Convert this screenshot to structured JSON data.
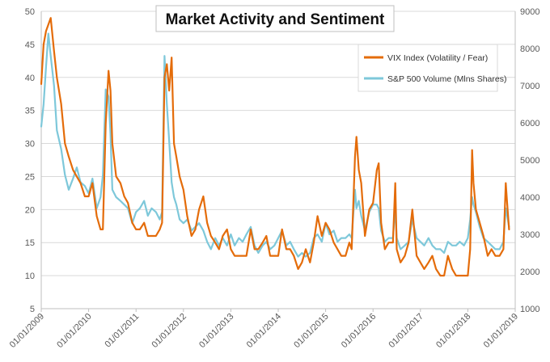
{
  "chart_data": {
    "type": "line",
    "title": "Market Activity and Sentiment",
    "grid": true,
    "legend": "top-right",
    "y_left": {
      "min": 5,
      "max": 50,
      "ticks": [
        "5",
        "10",
        "15",
        "20",
        "25",
        "30",
        "35",
        "40",
        "45",
        "50"
      ]
    },
    "y_right": {
      "min": 1000,
      "max": 9000,
      "ticks": [
        "1000",
        "2000",
        "3000",
        "4000",
        "5000",
        "6000",
        "7000",
        "8000",
        "9000"
      ]
    },
    "x_ticks": [
      "01/01/2009",
      "01/01/2010",
      "01/01/2011",
      "01/01/2012",
      "01/01/2013",
      "01/01/2014",
      "01/01/2015",
      "01/01/2016",
      "01/01/2017",
      "01/01/2018",
      "01/01/2019"
    ],
    "x_range": [
      2009.0,
      2019.0
    ],
    "series": [
      {
        "name": "VIX Index (Volatility / Fear)",
        "axis": "left",
        "color": "#E46C0A",
        "points": [
          [
            2009.0,
            39
          ],
          [
            2009.05,
            45
          ],
          [
            2009.1,
            47
          ],
          [
            2009.15,
            48
          ],
          [
            2009.2,
            49
          ],
          [
            2009.27,
            44
          ],
          [
            2009.33,
            40
          ],
          [
            2009.42,
            36
          ],
          [
            2009.5,
            30
          ],
          [
            2009.58,
            28
          ],
          [
            2009.67,
            26
          ],
          [
            2009.75,
            25
          ],
          [
            2009.83,
            24
          ],
          [
            2009.92,
            22
          ],
          [
            2010.0,
            22
          ],
          [
            2010.08,
            24
          ],
          [
            2010.17,
            19
          ],
          [
            2010.25,
            17
          ],
          [
            2010.3,
            17
          ],
          [
            2010.36,
            33
          ],
          [
            2010.42,
            41
          ],
          [
            2010.46,
            38
          ],
          [
            2010.5,
            30
          ],
          [
            2010.58,
            25
          ],
          [
            2010.67,
            24
          ],
          [
            2010.75,
            22
          ],
          [
            2010.83,
            21
          ],
          [
            2010.92,
            18
          ],
          [
            2011.0,
            17
          ],
          [
            2011.08,
            17
          ],
          [
            2011.17,
            18
          ],
          [
            2011.25,
            16
          ],
          [
            2011.33,
            16
          ],
          [
            2011.42,
            16
          ],
          [
            2011.5,
            17
          ],
          [
            2011.55,
            18
          ],
          [
            2011.6,
            40
          ],
          [
            2011.65,
            42
          ],
          [
            2011.7,
            38
          ],
          [
            2011.75,
            43
          ],
          [
            2011.8,
            30
          ],
          [
            2011.85,
            28
          ],
          [
            2011.92,
            25
          ],
          [
            2012.0,
            23
          ],
          [
            2012.08,
            19
          ],
          [
            2012.17,
            16
          ],
          [
            2012.25,
            17
          ],
          [
            2012.33,
            20
          ],
          [
            2012.42,
            22
          ],
          [
            2012.5,
            18
          ],
          [
            2012.58,
            16
          ],
          [
            2012.67,
            15
          ],
          [
            2012.75,
            14
          ],
          [
            2012.83,
            16
          ],
          [
            2012.92,
            17
          ],
          [
            2013.0,
            14
          ],
          [
            2013.08,
            13
          ],
          [
            2013.17,
            13
          ],
          [
            2013.25,
            13
          ],
          [
            2013.33,
            13
          ],
          [
            2013.42,
            17
          ],
          [
            2013.5,
            14
          ],
          [
            2013.58,
            14
          ],
          [
            2013.67,
            15
          ],
          [
            2013.75,
            16
          ],
          [
            2013.83,
            13
          ],
          [
            2013.92,
            13
          ],
          [
            2014.0,
            13
          ],
          [
            2014.08,
            17
          ],
          [
            2014.17,
            14
          ],
          [
            2014.25,
            14
          ],
          [
            2014.33,
            13
          ],
          [
            2014.42,
            11
          ],
          [
            2014.5,
            12
          ],
          [
            2014.58,
            14
          ],
          [
            2014.67,
            12
          ],
          [
            2014.75,
            15
          ],
          [
            2014.83,
            19
          ],
          [
            2014.92,
            16
          ],
          [
            2015.0,
            18
          ],
          [
            2015.08,
            17
          ],
          [
            2015.17,
            15
          ],
          [
            2015.25,
            14
          ],
          [
            2015.33,
            13
          ],
          [
            2015.42,
            13
          ],
          [
            2015.5,
            15
          ],
          [
            2015.55,
            14
          ],
          [
            2015.62,
            28
          ],
          [
            2015.65,
            31
          ],
          [
            2015.7,
            26
          ],
          [
            2015.75,
            24
          ],
          [
            2015.83,
            16
          ],
          [
            2015.92,
            20
          ],
          [
            2016.0,
            21
          ],
          [
            2016.08,
            26
          ],
          [
            2016.12,
            27
          ],
          [
            2016.17,
            18
          ],
          [
            2016.25,
            14
          ],
          [
            2016.33,
            15
          ],
          [
            2016.42,
            15
          ],
          [
            2016.47,
            24
          ],
          [
            2016.5,
            14
          ],
          [
            2016.58,
            12
          ],
          [
            2016.67,
            13
          ],
          [
            2016.75,
            15
          ],
          [
            2016.83,
            20
          ],
          [
            2016.92,
            13
          ],
          [
            2017.0,
            12
          ],
          [
            2017.08,
            11
          ],
          [
            2017.17,
            12
          ],
          [
            2017.25,
            13
          ],
          [
            2017.33,
            11
          ],
          [
            2017.42,
            10
          ],
          [
            2017.5,
            10
          ],
          [
            2017.58,
            13
          ],
          [
            2017.67,
            11
          ],
          [
            2017.75,
            10
          ],
          [
            2017.83,
            10
          ],
          [
            2017.92,
            10
          ],
          [
            2018.0,
            10
          ],
          [
            2018.05,
            14
          ],
          [
            2018.09,
            29
          ],
          [
            2018.12,
            24
          ],
          [
            2018.17,
            20
          ],
          [
            2018.25,
            18
          ],
          [
            2018.33,
            16
          ],
          [
            2018.42,
            13
          ],
          [
            2018.5,
            14
          ],
          [
            2018.58,
            13
          ],
          [
            2018.67,
            13
          ],
          [
            2018.75,
            14
          ],
          [
            2018.8,
            24
          ],
          [
            2018.83,
            21
          ],
          [
            2018.87,
            17
          ]
        ]
      },
      {
        "name": "S&P 500 Volume (Mlns Shares)",
        "axis": "right",
        "color": "#7EC8DA",
        "points": [
          [
            2009.0,
            5900
          ],
          [
            2009.05,
            6500
          ],
          [
            2009.1,
            7500
          ],
          [
            2009.15,
            8400
          ],
          [
            2009.2,
            7800
          ],
          [
            2009.27,
            7000
          ],
          [
            2009.33,
            5800
          ],
          [
            2009.42,
            5300
          ],
          [
            2009.5,
            4600
          ],
          [
            2009.58,
            4200
          ],
          [
            2009.67,
            4500
          ],
          [
            2009.75,
            4800
          ],
          [
            2009.83,
            4400
          ],
          [
            2009.92,
            4300
          ],
          [
            2010.0,
            4100
          ],
          [
            2010.08,
            4500
          ],
          [
            2010.17,
            3700
          ],
          [
            2010.25,
            4000
          ],
          [
            2010.3,
            4600
          ],
          [
            2010.36,
            6900
          ],
          [
            2010.42,
            6700
          ],
          [
            2010.46,
            5700
          ],
          [
            2010.5,
            4200
          ],
          [
            2010.58,
            4000
          ],
          [
            2010.67,
            3900
          ],
          [
            2010.75,
            3800
          ],
          [
            2010.83,
            3700
          ],
          [
            2010.92,
            3300
          ],
          [
            2011.0,
            3600
          ],
          [
            2011.08,
            3700
          ],
          [
            2011.17,
            3900
          ],
          [
            2011.25,
            3500
          ],
          [
            2011.33,
            3700
          ],
          [
            2011.42,
            3600
          ],
          [
            2011.5,
            3400
          ],
          [
            2011.55,
            3600
          ],
          [
            2011.6,
            7800
          ],
          [
            2011.65,
            6500
          ],
          [
            2011.7,
            5500
          ],
          [
            2011.75,
            4400
          ],
          [
            2011.8,
            4000
          ],
          [
            2011.85,
            3800
          ],
          [
            2011.92,
            3400
          ],
          [
            2012.0,
            3300
          ],
          [
            2012.08,
            3400
          ],
          [
            2012.17,
            3100
          ],
          [
            2012.25,
            3200
          ],
          [
            2012.33,
            3300
          ],
          [
            2012.42,
            3100
          ],
          [
            2012.5,
            2800
          ],
          [
            2012.58,
            2600
          ],
          [
            2012.67,
            2900
          ],
          [
            2012.75,
            2700
          ],
          [
            2012.83,
            2900
          ],
          [
            2012.92,
            2700
          ],
          [
            2013.0,
            3000
          ],
          [
            2013.08,
            2700
          ],
          [
            2013.17,
            2900
          ],
          [
            2013.25,
            2800
          ],
          [
            2013.33,
            3000
          ],
          [
            2013.42,
            3200
          ],
          [
            2013.5,
            2700
          ],
          [
            2013.58,
            2500
          ],
          [
            2013.67,
            2700
          ],
          [
            2013.75,
            2800
          ],
          [
            2013.83,
            2600
          ],
          [
            2013.92,
            2700
          ],
          [
            2014.0,
            2900
          ],
          [
            2014.08,
            3100
          ],
          [
            2014.17,
            2700
          ],
          [
            2014.25,
            2800
          ],
          [
            2014.33,
            2600
          ],
          [
            2014.42,
            2400
          ],
          [
            2014.5,
            2500
          ],
          [
            2014.58,
            2400
          ],
          [
            2014.67,
            2500
          ],
          [
            2014.75,
            2900
          ],
          [
            2014.83,
            3000
          ],
          [
            2014.92,
            2800
          ],
          [
            2015.0,
            3300
          ],
          [
            2015.08,
            3000
          ],
          [
            2015.17,
            3100
          ],
          [
            2015.25,
            2800
          ],
          [
            2015.33,
            2900
          ],
          [
            2015.42,
            2900
          ],
          [
            2015.5,
            3000
          ],
          [
            2015.55,
            2900
          ],
          [
            2015.62,
            4200
          ],
          [
            2015.65,
            3700
          ],
          [
            2015.7,
            3900
          ],
          [
            2015.75,
            3500
          ],
          [
            2015.83,
            3100
          ],
          [
            2015.92,
            3600
          ],
          [
            2016.0,
            3800
          ],
          [
            2016.08,
            3800
          ],
          [
            2016.12,
            3700
          ],
          [
            2016.17,
            3100
          ],
          [
            2016.25,
            2800
          ],
          [
            2016.33,
            2900
          ],
          [
            2016.42,
            2900
          ],
          [
            2016.47,
            3700
          ],
          [
            2016.5,
            2900
          ],
          [
            2016.58,
            2600
          ],
          [
            2016.67,
            2700
          ],
          [
            2016.75,
            2800
          ],
          [
            2016.83,
            3400
          ],
          [
            2016.92,
            2900
          ],
          [
            2017.0,
            2800
          ],
          [
            2017.08,
            2700
          ],
          [
            2017.17,
            2900
          ],
          [
            2017.25,
            2700
          ],
          [
            2017.33,
            2600
          ],
          [
            2017.42,
            2600
          ],
          [
            2017.5,
            2500
          ],
          [
            2017.58,
            2800
          ],
          [
            2017.67,
            2700
          ],
          [
            2017.75,
            2700
          ],
          [
            2017.83,
            2800
          ],
          [
            2017.92,
            2700
          ],
          [
            2018.0,
            2900
          ],
          [
            2018.05,
            3400
          ],
          [
            2018.09,
            4000
          ],
          [
            2018.12,
            3800
          ],
          [
            2018.17,
            3600
          ],
          [
            2018.25,
            3200
          ],
          [
            2018.33,
            2900
          ],
          [
            2018.42,
            2800
          ],
          [
            2018.5,
            2700
          ],
          [
            2018.58,
            2600
          ],
          [
            2018.67,
            2600
          ],
          [
            2018.75,
            2800
          ],
          [
            2018.8,
            3700
          ],
          [
            2018.83,
            3500
          ],
          [
            2018.87,
            3200
          ]
        ]
      }
    ]
  }
}
